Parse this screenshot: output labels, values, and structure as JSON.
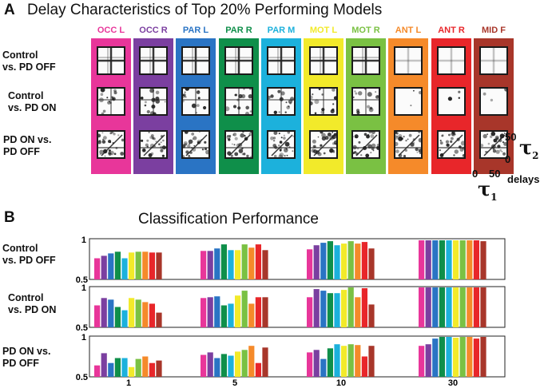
{
  "panelA": {
    "letter": "A",
    "title": "Delay Characteristics of Top 20% Performing Models",
    "regions": [
      {
        "label": "OCC L",
        "color": "#e8369a"
      },
      {
        "label": "OCC R",
        "color": "#7b3fa0"
      },
      {
        "label": "PAR L",
        "color": "#2a74c4"
      },
      {
        "label": "PAR R",
        "color": "#0f8f4a"
      },
      {
        "label": "PAR M",
        "color": "#1cb1dc"
      },
      {
        "label": "MOT L",
        "color": "#f2ea2a"
      },
      {
        "label": "MOT R",
        "color": "#7ac143"
      },
      {
        "label": "ANT L",
        "color": "#f58a2a"
      },
      {
        "label": "ANT R",
        "color": "#e8262a"
      },
      {
        "label": "MID F",
        "color": "#a8362a"
      }
    ],
    "rows": [
      {
        "line1": "Control",
        "line2": "vs. PD OFF"
      },
      {
        "line1": "Control",
        "line2": "vs. PD ON"
      },
      {
        "line1": "PD ON vs.",
        "line2": "PD OFF"
      }
    ],
    "axis": {
      "tick_50_y": "50",
      "tick_0_y": "0",
      "tick_0_x": "0",
      "tick_50_x": "50",
      "tau2": "τ",
      "tau2_sub": "2",
      "tau1": "τ",
      "tau1_sub": "1",
      "delays_label": "delays"
    }
  },
  "panelB": {
    "letter": "B",
    "title": "Classification Performance",
    "rows": [
      {
        "line1": "Control",
        "line2": "vs. PD OFF"
      },
      {
        "line1": "Control",
        "line2": "vs. PD ON"
      },
      {
        "line1": "PD ON vs.",
        "line2": "PD OFF"
      }
    ]
  },
  "chart_data": {
    "type": "bar",
    "title": "Classification Performance",
    "categories": [
      "1",
      "5",
      "10",
      "30"
    ],
    "ylim": [
      0.5,
      1
    ],
    "yticks": [
      "1",
      "0.5"
    ],
    "series_colors": [
      "#e8369a",
      "#7b3fa0",
      "#2a74c4",
      "#0f8f4a",
      "#1cb1dc",
      "#f2ea2a",
      "#7ac143",
      "#f58a2a",
      "#e8262a",
      "#a8362a"
    ],
    "panels": [
      {
        "comparison": "Control vs. PD OFF",
        "values": [
          [
            0.76,
            0.79,
            0.82,
            0.84,
            0.76,
            0.83,
            0.84,
            0.84,
            0.83,
            0.83
          ],
          [
            0.85,
            0.85,
            0.88,
            0.93,
            0.86,
            0.86,
            0.93,
            0.89,
            0.93,
            0.86
          ],
          [
            0.87,
            0.92,
            0.95,
            0.97,
            0.92,
            0.94,
            0.97,
            0.94,
            0.96,
            0.88
          ],
          [
            0.98,
            0.98,
            0.98,
            0.98,
            0.98,
            0.98,
            0.98,
            0.98,
            0.98,
            0.97
          ]
        ]
      },
      {
        "comparison": "Control vs. PD ON",
        "values": [
          [
            0.77,
            0.86,
            0.84,
            0.75,
            0.71,
            0.86,
            0.84,
            0.81,
            0.79,
            0.68
          ],
          [
            0.86,
            0.87,
            0.88,
            0.77,
            0.79,
            0.89,
            0.95,
            0.79,
            0.87,
            0.87
          ],
          [
            0.87,
            0.97,
            0.95,
            0.92,
            0.92,
            0.96,
            0.99,
            0.87,
            0.98,
            0.78
          ],
          [
            0.99,
            0.99,
            0.99,
            0.99,
            0.99,
            0.99,
            0.99,
            0.99,
            0.99,
            0.99
          ]
        ]
      },
      {
        "comparison": "PD ON vs. PD OFF",
        "values": [
          [
            0.64,
            0.79,
            0.67,
            0.73,
            0.73,
            0.62,
            0.72,
            0.75,
            0.67,
            0.7
          ],
          [
            0.77,
            0.8,
            0.73,
            0.78,
            0.76,
            0.81,
            0.83,
            0.88,
            0.67,
            0.86
          ],
          [
            0.8,
            0.83,
            0.72,
            0.85,
            0.9,
            0.88,
            0.9,
            0.89,
            0.75,
            0.88
          ],
          [
            0.88,
            0.9,
            0.97,
            0.99,
            0.99,
            0.98,
            0.99,
            0.99,
            0.97,
            0.99
          ]
        ]
      }
    ]
  }
}
